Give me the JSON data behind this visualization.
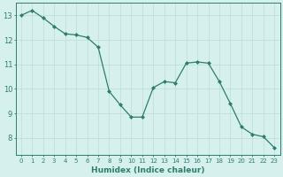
{
  "x": [
    0,
    1,
    2,
    3,
    4,
    5,
    6,
    7,
    8,
    9,
    10,
    11,
    12,
    13,
    14,
    15,
    16,
    17,
    18,
    19,
    20,
    21,
    22,
    23
  ],
  "y": [
    13.0,
    13.2,
    12.9,
    12.55,
    12.25,
    12.2,
    12.1,
    11.7,
    9.9,
    9.35,
    8.85,
    8.85,
    10.05,
    10.3,
    10.25,
    11.05,
    11.1,
    11.05,
    10.3,
    9.4,
    8.45,
    8.15,
    8.05,
    7.6
  ],
  "line_color": "#2e7d6e",
  "marker": "D",
  "marker_size": 2.0,
  "bg_color": "#d6f0ee",
  "grid_color": "#c4deda",
  "xlabel": "Humidex (Indice chaleur)",
  "xlim": [
    -0.5,
    23.5
  ],
  "ylim": [
    7.3,
    13.5
  ],
  "yticks": [
    8,
    9,
    10,
    11,
    12,
    13
  ],
  "xticks": [
    0,
    1,
    2,
    3,
    4,
    5,
    6,
    7,
    8,
    9,
    10,
    11,
    12,
    13,
    14,
    15,
    16,
    17,
    18,
    19,
    20,
    21,
    22,
    23
  ],
  "xlabel_fontsize": 6.5,
  "xtick_fontsize": 5.0,
  "ytick_fontsize": 6.0
}
